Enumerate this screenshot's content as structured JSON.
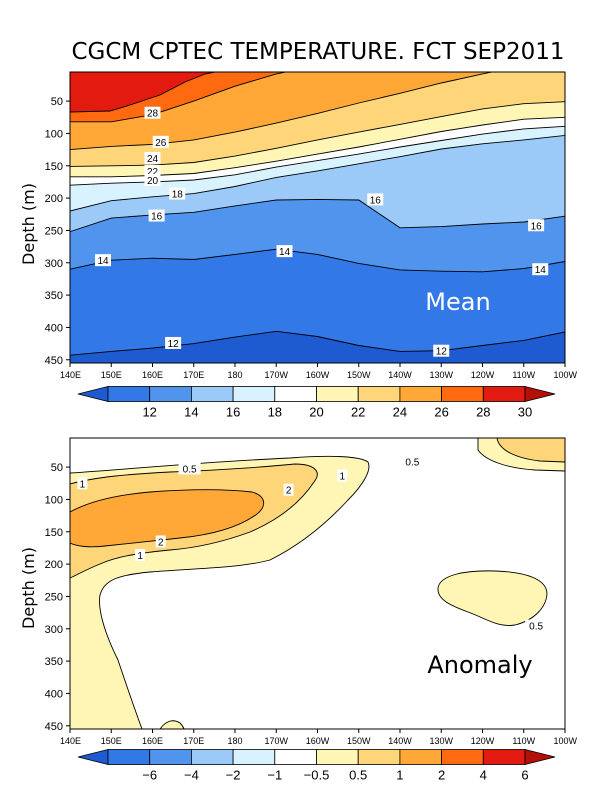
{
  "chart_data": {
    "type": "heatmap",
    "title": "CGCM CPTEC TEMPERATURE. FCT SEP2011",
    "panels": [
      {
        "name": "Mean",
        "ylabel": "Depth (m)",
        "yticks": [
          "50",
          "100",
          "150",
          "200",
          "250",
          "300",
          "350",
          "400",
          "450"
        ],
        "ytick_values": [
          50,
          100,
          150,
          200,
          250,
          300,
          350,
          400,
          450
        ],
        "ylim": [
          455,
          5
        ],
        "xticks": [
          "140E",
          "150E",
          "160E",
          "170E",
          "180",
          "170W",
          "160W",
          "150W",
          "140W",
          "130W",
          "120W",
          "110W",
          "100W"
        ],
        "colorbar_labels": [
          "12",
          "14",
          "16",
          "18",
          "20",
          "22",
          "24",
          "26",
          "28",
          "30"
        ],
        "colors": [
          "#1e5bd0",
          "#3278e6",
          "#5094ee",
          "#9ccaf8",
          "#d8f2ff",
          "#ffffff",
          "#fff5b5",
          "#ffd57a",
          "#ffa838",
          "#ff6a10",
          "#e31a10",
          "#b50f0a"
        ],
        "isotherms": [
          {
            "value": 12,
            "depth": [
              443,
              437,
              432,
              425,
              415,
              406,
              414,
              428,
              437,
              436,
              428,
              420,
              407
            ]
          },
          {
            "value": 14,
            "depth": [
              310,
              296,
              293,
              295,
              287,
              279,
              287,
              301,
              311,
              313,
              314,
              309,
              298
            ]
          },
          {
            "value": 16,
            "depth": [
              252,
              231,
              226,
              222,
              212,
              203,
              202,
              203,
              246,
              244,
              240,
              237,
              228
            ]
          },
          {
            "value": 18,
            "depth": [
              220,
              204,
              198,
              193,
              182,
              168,
              158,
              147,
              136,
              124,
              116,
              110,
              103
            ]
          },
          {
            "value": 20,
            "depth": [
              180,
              177,
              175,
              172,
              164,
              152,
              142,
              132,
              121,
              111,
              101,
              93,
              89
            ]
          },
          {
            "value": 22,
            "depth": [
              167,
              167,
              165,
              162,
              153,
              143,
              132,
              121,
              109,
              97,
              87,
              78,
              75
            ]
          },
          {
            "value": 24,
            "depth": [
              151,
              150,
              149,
              145,
              135,
              123,
              110,
              98,
              86,
              74,
              62,
              54,
              51
            ]
          },
          {
            "value": 26,
            "depth": [
              125,
              120,
              117,
              110,
              98,
              84,
              69,
              53,
              38,
              22,
              8,
              -5,
              -10
            ]
          },
          {
            "value": 28,
            "depth": [
              82,
              82,
              71,
              50,
              27,
              8,
              -5,
              -10,
              -10,
              -10,
              -10,
              -10,
              -10
            ]
          }
        ],
        "contour_labels": [
          {
            "text": "28",
            "lon": 160,
            "depth": 68
          },
          {
            "text": "26",
            "lon": 162,
            "depth": 113
          },
          {
            "text": "24",
            "lon": 160,
            "depth": 138
          },
          {
            "text": "22",
            "lon": 160,
            "depth": 158
          },
          {
            "text": "20",
            "lon": 160,
            "depth": 172
          },
          {
            "text": "18",
            "lon": 166,
            "depth": 193
          },
          {
            "text": "16",
            "lon": 161,
            "depth": 227
          },
          {
            "text": "16",
            "lon": 214,
            "depth": 202
          },
          {
            "text": "16",
            "lon": 253,
            "depth": 242
          },
          {
            "text": "14",
            "lon": 148,
            "depth": 296
          },
          {
            "text": "14",
            "lon": 192,
            "depth": 282
          },
          {
            "text": "14",
            "lon": 254,
            "depth": 310
          },
          {
            "text": "12",
            "lon": 165,
            "depth": 424
          },
          {
            "text": "12",
            "lon": 230,
            "depth": 436
          }
        ]
      },
      {
        "name": "Anomaly",
        "ylabel": "Depth (m)",
        "yticks": [
          "50",
          "100",
          "150",
          "200",
          "250",
          "300",
          "350",
          "400",
          "450"
        ],
        "ytick_values": [
          50,
          100,
          150,
          200,
          250,
          300,
          350,
          400,
          450
        ],
        "ylim": [
          455,
          5
        ],
        "xticks": [
          "140E",
          "150E",
          "160E",
          "170E",
          "180",
          "170W",
          "160W",
          "150W",
          "140W",
          "130W",
          "120W",
          "110W",
          "100W"
        ],
        "colorbar_labels": [
          "-6",
          "-4",
          "-2",
          "-1",
          "-0.5",
          "0.5",
          "1",
          "2",
          "4",
          "6"
        ],
        "colors": [
          "#1e5bd0",
          "#3278e6",
          "#5094ee",
          "#9ccaf8",
          "#d8f2ff",
          "#ffffff",
          "#fff5b5",
          "#ffd57a",
          "#ffa838",
          "#ff6a10",
          "#e31a10",
          "#b50f0a"
        ],
        "contour_labels": [
          {
            "text": "0.5",
            "lon": 169,
            "depth": 52
          },
          {
            "text": "0.5",
            "lon": 223,
            "depth": 41
          },
          {
            "text": "0.5",
            "lon": 253,
            "depth": 295
          },
          {
            "text": "1",
            "lon": 143,
            "depth": 75
          },
          {
            "text": "1",
            "lon": 206,
            "depth": 63
          },
          {
            "text": "1",
            "lon": 157,
            "depth": 186
          },
          {
            "text": "2",
            "lon": 193,
            "depth": 85
          },
          {
            "text": "2",
            "lon": 162,
            "depth": 165
          }
        ]
      }
    ]
  }
}
